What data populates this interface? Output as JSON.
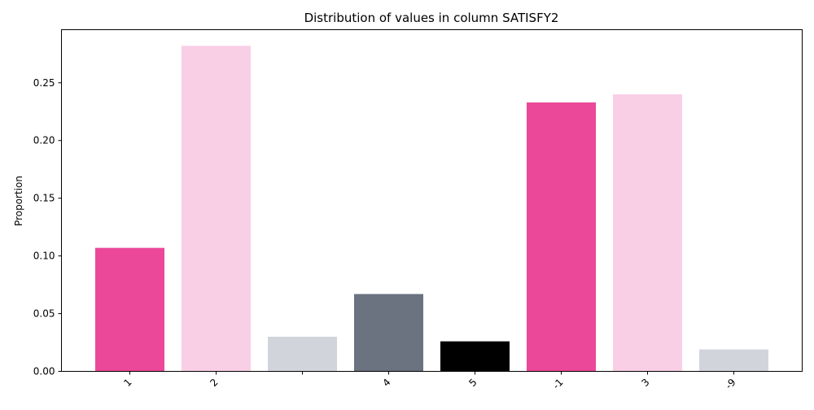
{
  "chart_data": {
    "type": "bar",
    "title": "Distribution of values in column SATISFY2",
    "xlabel": "",
    "ylabel": "Proportion",
    "categories": [
      "1",
      "2",
      " ",
      "4",
      "5",
      "-1",
      "3",
      "-9"
    ],
    "values": [
      0.107,
      0.282,
      0.03,
      0.067,
      0.026,
      0.233,
      0.24,
      0.019
    ],
    "colors": [
      "#EC4899",
      "#F9CFE6",
      "#D1D5DB",
      "#6B7280",
      "#000000",
      "#EC4899",
      "#F9CFE6",
      "#D1D5DB"
    ],
    "ylim": [
      0,
      0.296
    ],
    "yticks": [
      0.0,
      0.05,
      0.1,
      0.15,
      0.2,
      0.25
    ],
    "ytick_labels": [
      "0.00",
      "0.05",
      "0.10",
      "0.15",
      "0.20",
      "0.25"
    ],
    "grid": false,
    "legend": "none"
  }
}
